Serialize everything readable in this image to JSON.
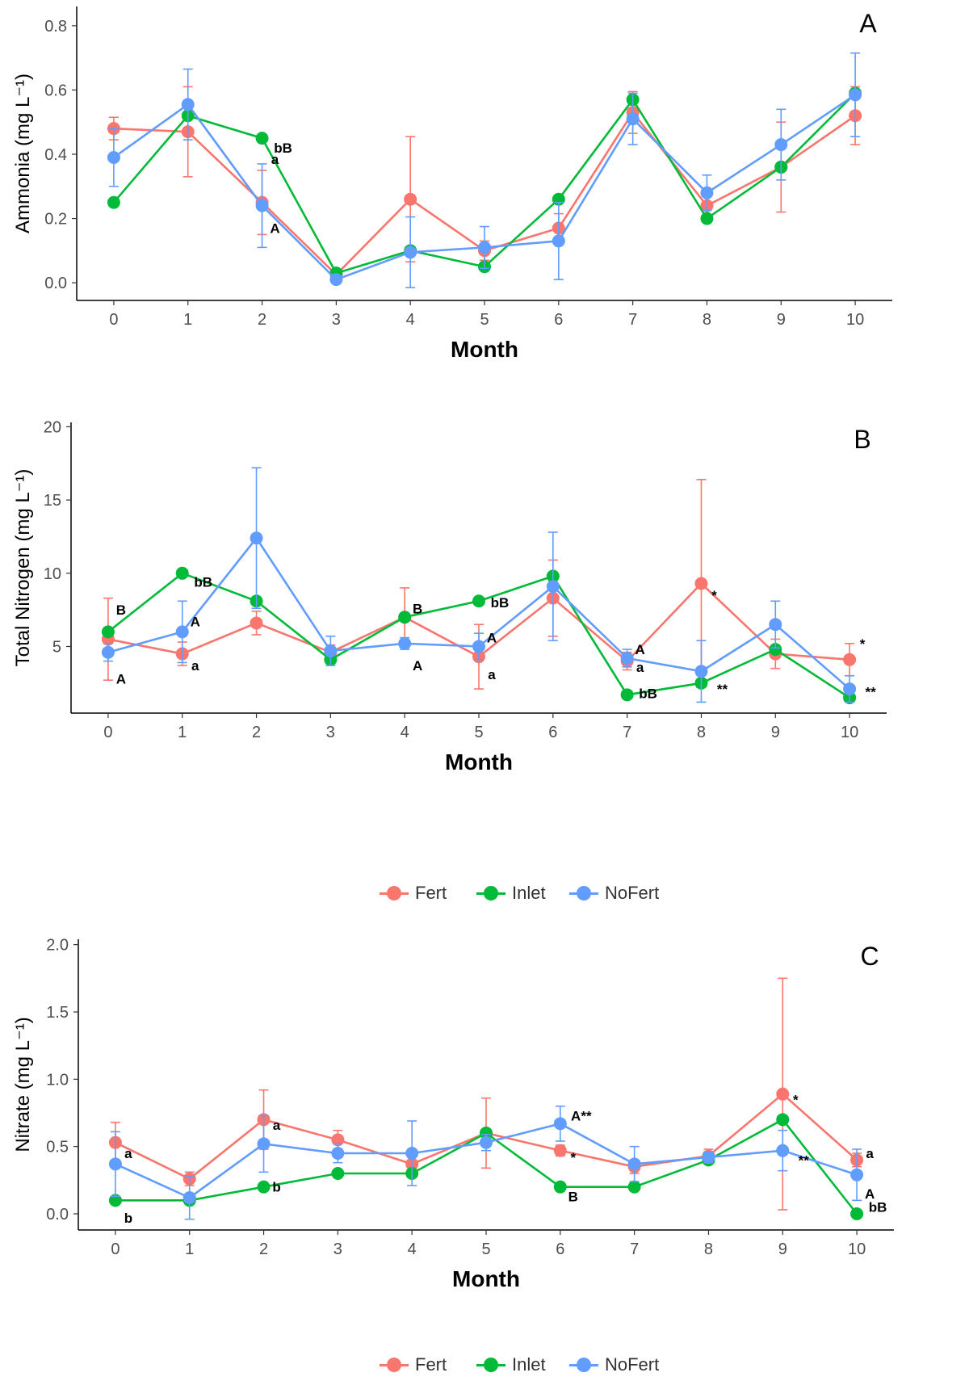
{
  "colors": {
    "Fert": "#F8766D",
    "Inlet": "#00BA38",
    "NoFert": "#619CFF"
  },
  "legend": {
    "items": [
      "Fert",
      "Inlet",
      "NoFert"
    ]
  },
  "chart_data": [
    {
      "type": "line",
      "panel_label": "A",
      "xlabel": "Month",
      "ylabel": "Ammonia (mg L⁻¹)",
      "xlim": [
        -0.5,
        10.5
      ],
      "ylim": [
        -0.055,
        0.86
      ],
      "x_ticks": [
        0,
        1,
        2,
        3,
        4,
        5,
        6,
        7,
        8,
        9,
        10
      ],
      "y_ticks": [
        0.0,
        0.2,
        0.4,
        0.6,
        0.8
      ],
      "y_tick_labels": [
        "0.0",
        "0.2",
        "0.4",
        "0.6",
        "0.8"
      ],
      "grid": false,
      "series": [
        {
          "name": "Fert",
          "x": [
            0,
            1,
            2,
            3,
            4,
            5,
            6,
            7,
            8,
            9,
            10
          ],
          "values": [
            0.48,
            0.47,
            0.25,
            0.025,
            0.26,
            0.1,
            0.17,
            0.53,
            0.24,
            0.36,
            0.52
          ],
          "err": [
            0.035,
            0.14,
            0.1,
            0.015,
            0.195,
            0.03,
            0.045,
            0.065,
            0.035,
            0.14,
            0.09
          ]
        },
        {
          "name": "Inlet",
          "x": [
            0,
            1,
            2,
            3,
            4,
            5,
            6,
            7,
            8,
            9,
            10
          ],
          "values": [
            0.25,
            0.52,
            0.45,
            0.03,
            0.1,
            0.05,
            0.26,
            0.57,
            0.2,
            0.36,
            0.59
          ],
          "err": [
            0,
            0,
            0,
            0,
            0,
            0,
            0,
            0,
            0,
            0,
            0
          ]
        },
        {
          "name": "NoFert",
          "x": [
            0,
            1,
            2,
            3,
            4,
            5,
            6,
            7,
            8,
            9,
            10
          ],
          "values": [
            0.39,
            0.555,
            0.24,
            0.01,
            0.095,
            0.11,
            0.13,
            0.51,
            0.28,
            0.43,
            0.585
          ],
          "err": [
            0.09,
            0.11,
            0.13,
            0.01,
            0.11,
            0.065,
            0.12,
            0.08,
            0.055,
            0.11,
            0.13
          ]
        }
      ],
      "annotations": [
        {
          "text": "bB",
          "x": 2,
          "y": 0.42
        },
        {
          "text": "a",
          "x": 2,
          "y": 0.385
        },
        {
          "text": "A",
          "x": 2,
          "y": 0.17
        }
      ]
    },
    {
      "type": "line",
      "panel_label": "B",
      "xlabel": "Month",
      "ylabel": "Total Nitrogen (mg L⁻¹)",
      "xlim": [
        -0.5,
        10.5
      ],
      "ylim": [
        0.45,
        20.3
      ],
      "x_ticks": [
        0,
        1,
        2,
        3,
        4,
        5,
        6,
        7,
        8,
        9,
        10
      ],
      "y_ticks": [
        5,
        10,
        15,
        20
      ],
      "y_tick_labels": [
        "5",
        "10",
        "15",
        "20"
      ],
      "grid": false,
      "series": [
        {
          "name": "Fert",
          "x": [
            0,
            1,
            2,
            3,
            4,
            5,
            6,
            7,
            8,
            9,
            10
          ],
          "values": [
            5.5,
            4.5,
            6.6,
            4.6,
            7.0,
            4.3,
            8.3,
            4.0,
            9.3,
            4.5,
            4.1
          ],
          "err": [
            2.8,
            0.8,
            0.8,
            0.5,
            2.0,
            2.2,
            2.6,
            0.6,
            7.1,
            1.0,
            1.1
          ]
        },
        {
          "name": "Inlet",
          "x": [
            0,
            1,
            2,
            3,
            4,
            5,
            6,
            7,
            8,
            9,
            10
          ],
          "values": [
            6.0,
            10.0,
            8.1,
            4.1,
            7.0,
            8.1,
            9.8,
            1.7,
            2.5,
            4.8,
            1.5
          ],
          "err": [
            0,
            0,
            0,
            0,
            0,
            0,
            0,
            0,
            0,
            0,
            0
          ]
        },
        {
          "name": "NoFert",
          "x": [
            0,
            1,
            2,
            3,
            4,
            5,
            6,
            7,
            8,
            9,
            10
          ],
          "values": [
            4.6,
            6.0,
            12.4,
            4.7,
            5.2,
            5.0,
            9.1,
            4.2,
            3.3,
            6.5,
            2.1
          ],
          "err": [
            0.6,
            2.1,
            4.8,
            1.0,
            0.4,
            0.9,
            3.7,
            0.6,
            2.1,
            1.6,
            0.9
          ]
        }
      ],
      "annotations": [
        {
          "text": "B",
          "x": 0,
          "y": 7.5
        },
        {
          "text": "A",
          "x": 0,
          "y": 2.8
        },
        {
          "text": "bB",
          "x": 1,
          "y": 9.4
        },
        {
          "text": "A",
          "x": 1,
          "y": 6.7
        },
        {
          "text": "a",
          "x": 1,
          "y": 3.7
        },
        {
          "text": "B",
          "x": 4,
          "y": 7.6
        },
        {
          "text": "A",
          "x": 4,
          "y": 3.7
        },
        {
          "text": "bB",
          "x": 5,
          "y": 8.0
        },
        {
          "text": "A",
          "x": 5,
          "y": 5.6
        },
        {
          "text": "a",
          "x": 5,
          "y": 3.1
        },
        {
          "text": "A",
          "x": 7,
          "y": 4.8
        },
        {
          "text": "a",
          "x": 7,
          "y": 3.6
        },
        {
          "text": "bB",
          "x": 7,
          "y": 1.8
        },
        {
          "text": "*",
          "x": 8,
          "y": 8.5
        },
        {
          "text": "**",
          "x": 8,
          "y": 2.1
        },
        {
          "text": "*",
          "x": 10,
          "y": 5.2
        },
        {
          "text": "**",
          "x": 10,
          "y": 1.9
        }
      ]
    },
    {
      "type": "line",
      "panel_label": "C",
      "xlabel": "Month",
      "ylabel": "Nitrate (mg L⁻¹)",
      "xlim": [
        -0.5,
        10.5
      ],
      "ylim": [
        -0.12,
        2.04
      ],
      "x_ticks": [
        0,
        1,
        2,
        3,
        4,
        5,
        6,
        7,
        8,
        9,
        10
      ],
      "y_ticks": [
        0.0,
        0.5,
        1.0,
        1.5,
        2.0
      ],
      "y_tick_labels": [
        "0.0",
        "0.5",
        "1.0",
        "1.5",
        "2.0"
      ],
      "grid": false,
      "series": [
        {
          "name": "Fert",
          "x": [
            0,
            1,
            2,
            3,
            4,
            5,
            6,
            7,
            8,
            9,
            10
          ],
          "values": [
            0.53,
            0.26,
            0.7,
            0.55,
            0.37,
            0.6,
            0.47,
            0.35,
            0.43,
            0.89,
            0.4
          ],
          "err": [
            0.15,
            0.05,
            0.22,
            0.07,
            0.06,
            0.26,
            0.04,
            0.05,
            0.05,
            0.86,
            0.05
          ]
        },
        {
          "name": "Inlet",
          "x": [
            0,
            1,
            2,
            3,
            4,
            5,
            6,
            7,
            8,
            9,
            10
          ],
          "values": [
            0.1,
            0.1,
            0.2,
            0.3,
            0.3,
            0.6,
            0.2,
            0.2,
            0.4,
            0.7,
            0.0
          ],
          "err": [
            0,
            0,
            0,
            0,
            0,
            0,
            0,
            0,
            0,
            0,
            0
          ]
        },
        {
          "name": "NoFert",
          "x": [
            0,
            1,
            2,
            3,
            4,
            5,
            6,
            7,
            8,
            9,
            10
          ],
          "values": [
            0.37,
            0.12,
            0.52,
            0.45,
            0.45,
            0.53,
            0.67,
            0.37,
            0.42,
            0.47,
            0.29
          ],
          "err": [
            0.24,
            0.16,
            0.21,
            0.07,
            0.24,
            0.06,
            0.13,
            0.13,
            0.04,
            0.15,
            0.19
          ]
        }
      ],
      "annotations": [
        {
          "text": "a",
          "x": 0,
          "y": 0.45
        },
        {
          "text": "b",
          "x": 0,
          "y": -0.03
        },
        {
          "text": "a",
          "x": 2,
          "y": 0.66
        },
        {
          "text": "b",
          "x": 2,
          "y": 0.2
        },
        {
          "text": "*",
          "x": 6,
          "y": 0.42
        },
        {
          "text": "A**",
          "x": 6,
          "y": 0.73
        },
        {
          "text": "B",
          "x": 6,
          "y": 0.13
        },
        {
          "text": "*",
          "x": 9,
          "y": 0.85
        },
        {
          "text": "**",
          "x": 9,
          "y": 0.4
        },
        {
          "text": "a",
          "x": 10,
          "y": 0.45
        },
        {
          "text": "bB",
          "x": 10,
          "y": 0.05
        },
        {
          "text": "A",
          "x": 10,
          "y": 0.15
        }
      ]
    }
  ]
}
